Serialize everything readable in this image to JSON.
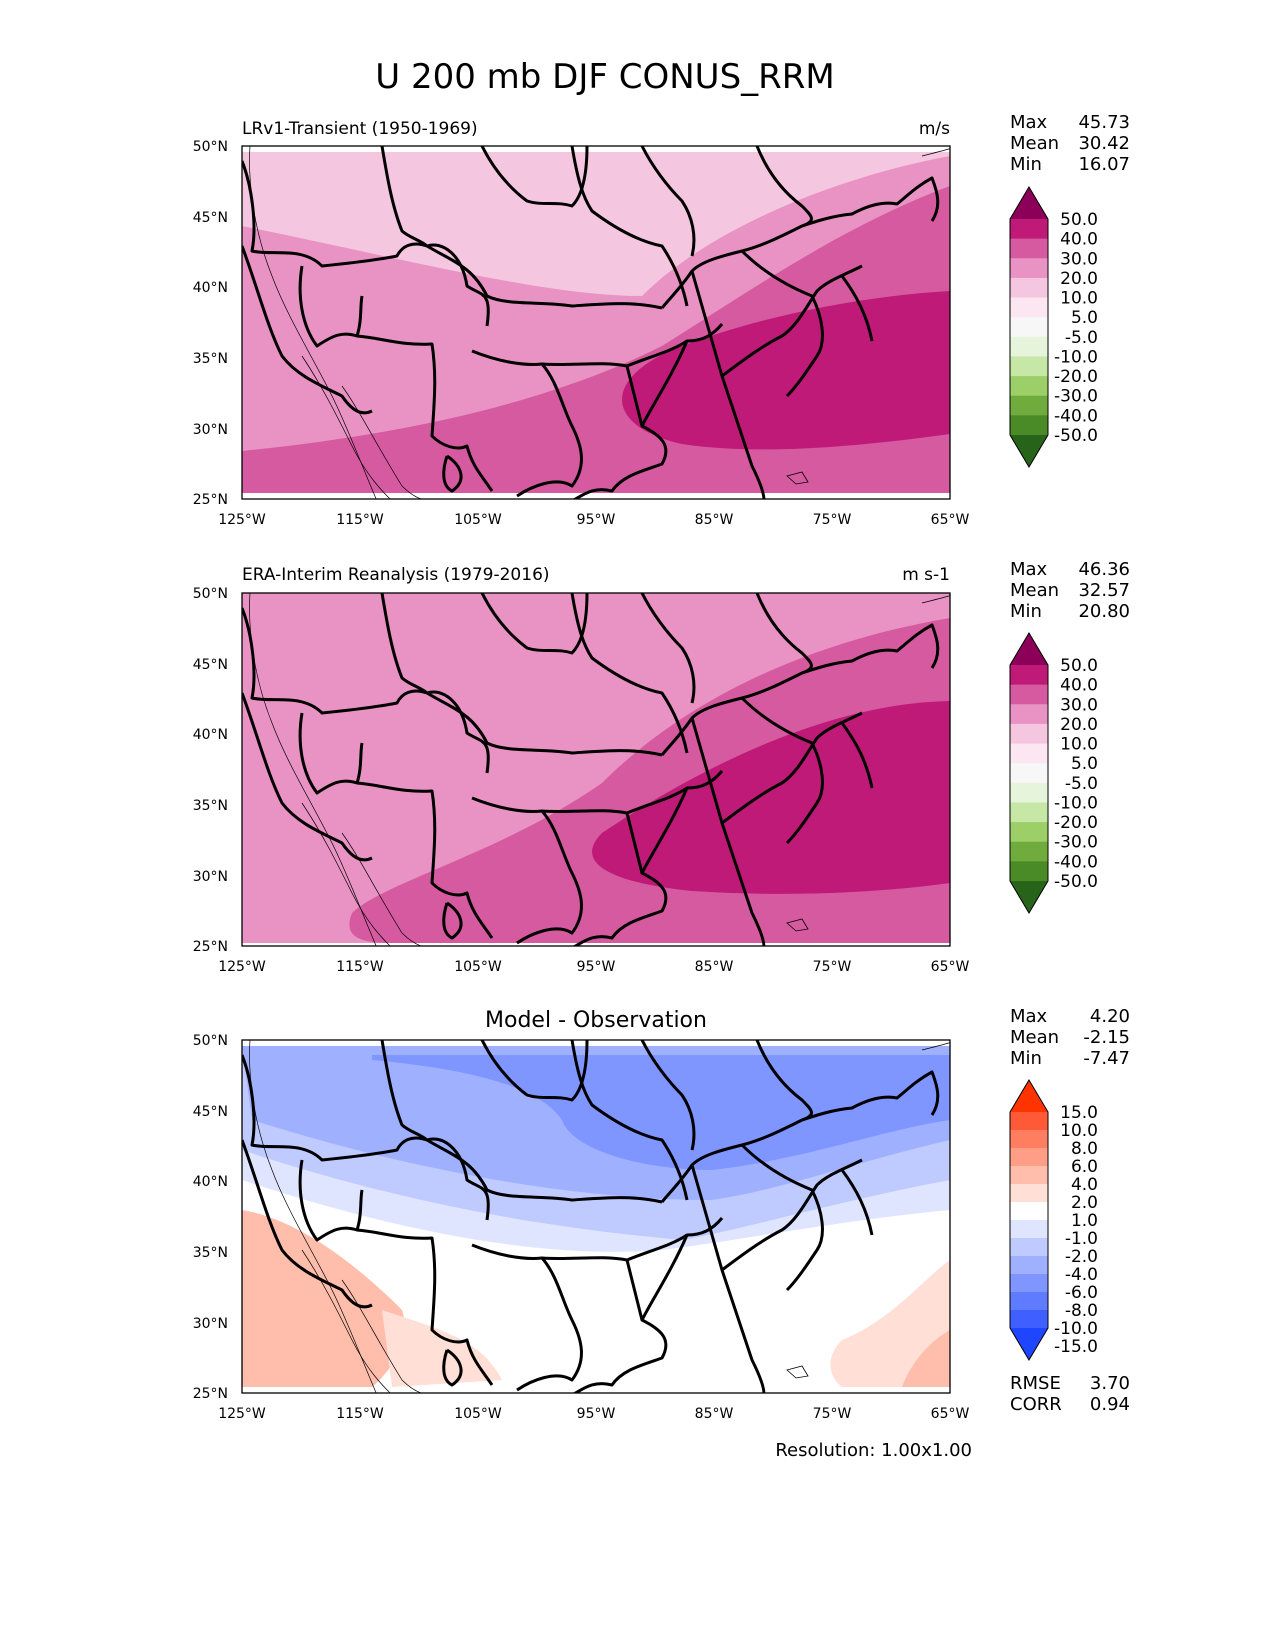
{
  "figure_title": "U 200 mb DJF CONUS_RRM",
  "resolution_text": "Resolution: 1.00x1.00",
  "colors": {
    "pink_levels": [
      "#f5c6e0",
      "#e893c3",
      "#d65aa0",
      "#bf1a78",
      "#8c0059"
    ],
    "pos_cbar": [
      "#8c0059",
      "#bf1a78",
      "#d65aa0",
      "#e893c3",
      "#f5c6e0",
      "#fbe6f1",
      "#f7f7f7",
      "#e6f4dc",
      "#c6e7a6",
      "#9ccf68",
      "#6fab3d",
      "#4a8a27",
      "#276419"
    ],
    "diff_cbar": [
      "#ff3300",
      "#ff5a38",
      "#ff7e5f",
      "#ff9e86",
      "#ffbdab",
      "#ffdfd6",
      "#ffffff",
      "#dfe5ff",
      "#bfcaff",
      "#9fb0ff",
      "#7f95ff",
      "#5f7bff",
      "#3f60ff",
      "#1f46ff"
    ],
    "land_outline": "#000000"
  },
  "chart_data": [
    {
      "type": "contour-map",
      "subtitle_left": "LRv1-Transient (1950-1969)",
      "subtitle_right": "m/s",
      "x_ticks": [
        "125°W",
        "115°W",
        "105°W",
        "95°W",
        "85°W",
        "75°W",
        "65°W"
      ],
      "y_ticks": [
        "50°N",
        "45°N",
        "40°N",
        "35°N",
        "30°N",
        "25°N"
      ],
      "xlim": [
        -125,
        -65
      ],
      "ylim": [
        25,
        50
      ],
      "stats": [
        {
          "label": "Max",
          "value": "45.73"
        },
        {
          "label": "Mean",
          "value": "30.42"
        },
        {
          "label": "Min",
          "value": "16.07"
        }
      ],
      "colorbar_levels": [
        "50.0",
        "40.0",
        "30.0",
        "20.0",
        "10.0",
        "5.0",
        "-5.0",
        "-10.0",
        "-20.0",
        "-30.0",
        "-40.0",
        "-50.0"
      ],
      "jet_core_range": [
        40,
        50
      ],
      "jet_core_center": {
        "lon": -70,
        "lat": 34
      }
    },
    {
      "type": "contour-map",
      "subtitle_left": "ERA-Interim Reanalysis (1979-2016)",
      "subtitle_right": "m s-1",
      "x_ticks": [
        "125°W",
        "115°W",
        "105°W",
        "95°W",
        "85°W",
        "75°W",
        "65°W"
      ],
      "y_ticks": [
        "50°N",
        "45°N",
        "40°N",
        "35°N",
        "30°N",
        "25°N"
      ],
      "xlim": [
        -125,
        -65
      ],
      "ylim": [
        25,
        50
      ],
      "stats": [
        {
          "label": "Max",
          "value": "46.36"
        },
        {
          "label": "Mean",
          "value": "32.57"
        },
        {
          "label": "Min",
          "value": "20.80"
        }
      ],
      "colorbar_levels": [
        "50.0",
        "40.0",
        "30.0",
        "20.0",
        "10.0",
        "5.0",
        "-5.0",
        "-10.0",
        "-20.0",
        "-30.0",
        "-40.0",
        "-50.0"
      ],
      "jet_core_range": [
        40,
        50
      ],
      "jet_core_center": {
        "lon": -72,
        "lat": 36
      }
    },
    {
      "type": "contour-map",
      "title": "Model - Observation",
      "x_ticks": [
        "125°W",
        "115°W",
        "105°W",
        "95°W",
        "85°W",
        "75°W",
        "65°W"
      ],
      "y_ticks": [
        "50°N",
        "45°N",
        "40°N",
        "35°N",
        "30°N",
        "25°N"
      ],
      "xlim": [
        -125,
        -65
      ],
      "ylim": [
        25,
        50
      ],
      "stats": [
        {
          "label": "Max",
          "value": "4.20"
        },
        {
          "label": "Mean",
          "value": "-2.15"
        },
        {
          "label": "Min",
          "value": "-7.47"
        }
      ],
      "colorbar_levels": [
        "15.0",
        "10.0",
        "8.0",
        "6.0",
        "4.0",
        "2.0",
        "1.0",
        "-1.0",
        "-2.0",
        "-4.0",
        "-6.0",
        "-8.0",
        "-10.0",
        "-15.0"
      ],
      "extra_stats": [
        {
          "label": "RMSE",
          "value": "3.70"
        },
        {
          "label": "CORR",
          "value": "0.94"
        }
      ]
    }
  ]
}
